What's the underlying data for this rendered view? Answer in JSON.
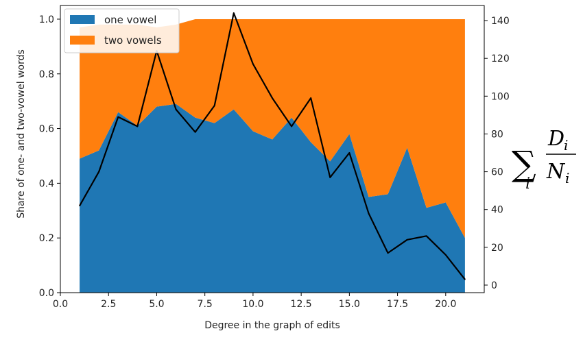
{
  "chart_data": {
    "type": "area",
    "xlabel": "Degree in the graph of edits",
    "ylabel": "Share of one- and two-vowel words",
    "y2label": {
      "sum": "∑",
      "index": "i",
      "numerator": "D",
      "numerator_sub": "i",
      "denominator": "N",
      "denominator_sub": "i"
    },
    "xlim": [
      0.0,
      22.0
    ],
    "ylim": [
      0.0,
      1.05
    ],
    "y2lim": [
      -4,
      148
    ],
    "x_ticks": [
      0.0,
      2.5,
      5.0,
      7.5,
      10.0,
      12.5,
      15.0,
      17.5,
      20.0
    ],
    "x_tick_labels": [
      "0.0",
      "2.5",
      "5.0",
      "7.5",
      "10.0",
      "12.5",
      "15.0",
      "17.5",
      "20.0"
    ],
    "y_ticks": [
      0.0,
      0.2,
      0.4,
      0.6,
      0.8,
      1.0
    ],
    "y_tick_labels": [
      "0.0",
      "0.2",
      "0.4",
      "0.6",
      "0.8",
      "1.0"
    ],
    "y2_ticks": [
      0,
      20,
      40,
      60,
      80,
      100,
      120,
      140
    ],
    "y2_tick_labels": [
      "0",
      "20",
      "40",
      "60",
      "80",
      "100",
      "120",
      "140"
    ],
    "grid": false,
    "legend_position": "top-left",
    "x": [
      1,
      2,
      3,
      4,
      5,
      6,
      7,
      8,
      9,
      10,
      11,
      12,
      13,
      14,
      15,
      16,
      17,
      18,
      19,
      20,
      21
    ],
    "series": [
      {
        "name": "one vowel",
        "kind": "stacked-area",
        "color": "#1f77b4",
        "values": [
          0.49,
          0.52,
          0.66,
          0.61,
          0.68,
          0.69,
          0.64,
          0.62,
          0.67,
          0.59,
          0.56,
          0.64,
          0.55,
          0.48,
          0.58,
          0.35,
          0.36,
          0.53,
          0.31,
          0.33,
          0.2
        ]
      },
      {
        "name": "two vowels",
        "kind": "stacked-area",
        "color": "#ff7f0e",
        "values": [
          0.48,
          0.46,
          0.32,
          0.37,
          0.29,
          0.29,
          0.36,
          0.38,
          0.33,
          0.41,
          0.44,
          0.36,
          0.45,
          0.52,
          0.42,
          0.65,
          0.64,
          0.47,
          0.69,
          0.67,
          0.8
        ]
      },
      {
        "kind": "line",
        "axis": "right",
        "color": "#000000",
        "values": [
          42,
          60,
          89,
          84,
          124,
          93,
          81,
          95,
          144,
          117,
          99,
          84,
          99,
          57,
          70,
          38,
          17,
          24,
          26,
          16,
          3
        ]
      }
    ]
  }
}
